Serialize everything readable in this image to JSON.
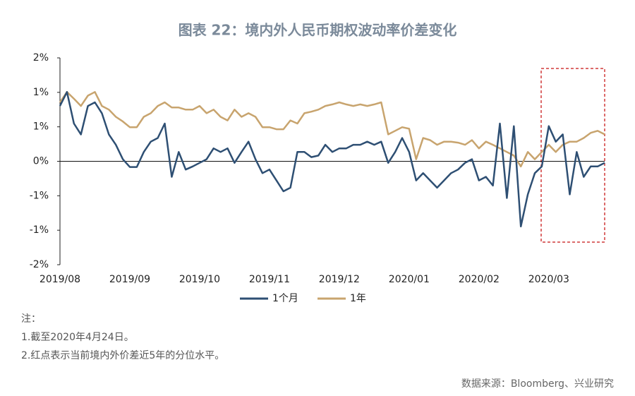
{
  "chart_data": {
    "type": "line",
    "title": "图表 22：境内外人民币期权波动率价差变化",
    "categories": [
      "2019/08",
      null,
      null,
      null,
      null,
      null,
      null,
      null,
      null,
      null,
      "2019/09",
      null,
      null,
      null,
      null,
      null,
      null,
      null,
      null,
      null,
      "2019/10",
      null,
      null,
      null,
      null,
      null,
      null,
      null,
      null,
      null,
      "2019/11",
      null,
      null,
      null,
      null,
      null,
      null,
      null,
      null,
      null,
      "2019/12",
      null,
      null,
      null,
      null,
      null,
      null,
      null,
      null,
      null,
      "2020/01",
      null,
      null,
      null,
      null,
      null,
      null,
      null,
      null,
      null,
      "2020/02",
      null,
      null,
      null,
      null,
      null,
      null,
      null,
      null,
      null,
      "2020/03",
      null,
      null,
      null,
      null,
      null,
      null,
      null,
      null
    ],
    "series": [
      {
        "name": "1个月",
        "color": "#2e4f73",
        "values": [
          1.07,
          1.34,
          0.73,
          0.52,
          1.07,
          1.14,
          0.93,
          0.52,
          0.32,
          0.04,
          -0.11,
          -0.11,
          0.18,
          0.38,
          0.45,
          0.73,
          -0.3,
          0.18,
          -0.16,
          -0.1,
          -0.03,
          0.04,
          0.25,
          0.18,
          0.25,
          -0.03,
          0.18,
          0.38,
          0.04,
          -0.23,
          -0.16,
          -0.37,
          -0.58,
          -0.51,
          0.18,
          0.18,
          0.08,
          0.11,
          0.32,
          0.18,
          0.25,
          0.25,
          0.32,
          0.32,
          0.38,
          0.32,
          0.38,
          -0.03,
          0.18,
          0.45,
          0.18,
          -0.37,
          -0.23,
          -0.37,
          -0.51,
          -0.37,
          -0.23,
          -0.16,
          -0.03,
          0.04,
          -0.37,
          -0.3,
          -0.47,
          0.73,
          -0.71,
          0.68,
          -1.26,
          -0.64,
          -0.23,
          -0.1,
          0.68,
          0.38,
          0.52,
          -0.64,
          0.18,
          -0.3,
          -0.1,
          -0.1,
          -0.03
        ]
      },
      {
        "name": "1年",
        "color": "#c8a46e",
        "values": [
          1.14,
          1.34,
          1.21,
          1.07,
          1.27,
          1.34,
          1.07,
          1.0,
          0.86,
          0.77,
          0.66,
          0.66,
          0.86,
          0.93,
          1.07,
          1.14,
          1.04,
          1.04,
          1.0,
          1.0,
          1.07,
          0.93,
          1.0,
          0.86,
          0.79,
          1.0,
          0.86,
          0.93,
          0.86,
          0.66,
          0.66,
          0.62,
          0.62,
          0.79,
          0.73,
          0.93,
          0.96,
          1.0,
          1.07,
          1.1,
          1.14,
          1.1,
          1.07,
          1.1,
          1.07,
          1.1,
          1.14,
          0.52,
          0.59,
          0.66,
          0.63,
          0.04,
          0.45,
          0.41,
          0.32,
          0.38,
          0.38,
          0.36,
          0.32,
          0.41,
          0.25,
          0.38,
          0.32,
          0.25,
          0.18,
          0.11,
          -0.1,
          0.18,
          0.04,
          0.18,
          0.32,
          0.18,
          0.32,
          0.38,
          0.38,
          0.45,
          0.55,
          0.59,
          0.52
        ]
      }
    ],
    "ylim": [
      -2,
      2
    ],
    "yticks": [
      {
        "value": 2,
        "label": "2%"
      },
      {
        "value": 1.3333,
        "label": "1%"
      },
      {
        "value": 0.6667,
        "label": "1%"
      },
      {
        "value": 0,
        "label": "0%"
      },
      {
        "value": -0.6667,
        "label": "-1%"
      },
      {
        "value": -1.3333,
        "label": "-1%"
      },
      {
        "value": -2,
        "label": "-2%"
      }
    ],
    "notes": [
      "注：",
      "1.截至2020年4月24日。",
      "2.红点表示当前境内外价差近5年的分位水平。"
    ],
    "source": "数据来源：Bloomberg、兴业研究"
  }
}
